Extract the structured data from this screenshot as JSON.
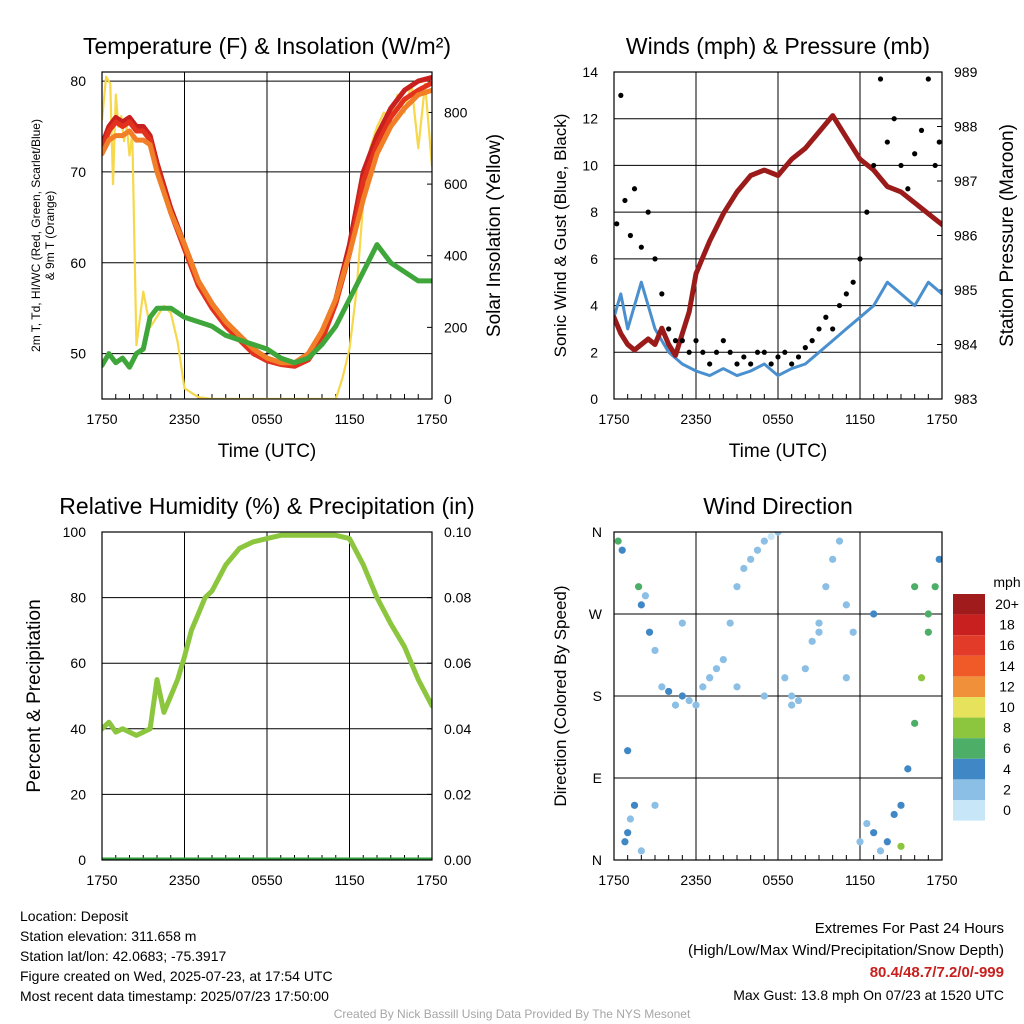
{
  "colors": {
    "temp_red": "#c8201e",
    "dewpoint_green": "#3ea63a",
    "heatindex_scarlet": "#e2321e",
    "nine_m_orange": "#f07f27",
    "insolation_yellow": "#f6d84a",
    "wind_blue": "#4a90cf",
    "gust_black": "#000000",
    "pressure_maroon": "#9b1b1b",
    "rh_green": "#8cc63f",
    "precip_green": "#2e9c3a",
    "extremes_red": "#c8201e"
  },
  "x_ticks": [
    "1750",
    "2350",
    "0550",
    "1150",
    "1750"
  ],
  "chart_data": [
    {
      "id": "temp",
      "type": "line",
      "title": "Temperature (F) & Insolation (W/m²)",
      "xlabel": "Time (UTC)",
      "ylabel": "2m T, Td, HI/WC (Red, Green, Scarlet/Blue) & 9m T (Orange)",
      "y2label": "Solar Insolation (Yellow)",
      "ylim": [
        45,
        81
      ],
      "y_ticks": [
        50,
        60,
        70,
        80
      ],
      "y2lim": [
        0,
        913
      ],
      "y2_ticks": [
        0,
        200,
        400,
        600,
        800
      ],
      "xlim": [
        0,
        24
      ],
      "series": [
        {
          "key": "insolation",
          "axis": "y2",
          "color": "#f6d84a",
          "x": [
            0,
            0.3,
            0.6,
            0.8,
            1.0,
            1.2,
            1.4,
            1.6,
            1.8,
            2.0,
            2.2,
            2.5,
            3.0,
            3.5,
            4.0,
            4.5,
            5.0,
            5.5,
            6.0,
            7.0,
            8.0,
            10.0,
            14.0,
            16.0,
            17.0,
            17.5,
            18.0,
            18.5,
            19.0,
            19.5,
            20.0,
            20.5,
            21.0,
            21.5,
            22.0,
            22.5,
            23.0,
            23.5,
            24.0
          ],
          "y": [
            780,
            900,
            880,
            600,
            850,
            760,
            790,
            720,
            760,
            680,
            740,
            150,
            300,
            200,
            230,
            260,
            240,
            160,
            30,
            5,
            0,
            0,
            0,
            0,
            0,
            60,
            140,
            300,
            550,
            700,
            760,
            800,
            780,
            850,
            800,
            880,
            700,
            880,
            650
          ]
        },
        {
          "key": "temp_2m",
          "axis": "y",
          "color": "#c8201e",
          "x": [
            0,
            0.5,
            1,
            1.5,
            2,
            2.5,
            3,
            3.5,
            4,
            5,
            6,
            7,
            8,
            9,
            10,
            11,
            12,
            13,
            14,
            15,
            16,
            17,
            18,
            19,
            20,
            21,
            22,
            23,
            24
          ],
          "y": [
            73,
            75,
            76,
            75.5,
            76,
            75,
            75,
            74,
            71,
            66,
            62,
            58,
            55.5,
            53.5,
            52,
            50.5,
            49.5,
            49,
            48.8,
            49.5,
            52,
            56,
            62,
            70,
            74,
            77,
            79,
            80,
            80.4
          ]
        },
        {
          "key": "heat_index",
          "axis": "y",
          "color": "#e2321e",
          "x": [
            0,
            0.5,
            1,
            1.5,
            2,
            2.5,
            3,
            3.5,
            4,
            5,
            6,
            7,
            8,
            9,
            10,
            11,
            12,
            13,
            14,
            15,
            16,
            17,
            18,
            19,
            20,
            21,
            22,
            23,
            24
          ],
          "y": [
            72.5,
            74.5,
            75.5,
            75,
            75.5,
            74.5,
            74.5,
            73.5,
            70.5,
            65.5,
            61.5,
            57.5,
            55,
            53,
            51.5,
            50,
            49.2,
            48.8,
            48.6,
            49.3,
            51.5,
            55.5,
            61,
            69,
            73,
            76,
            78,
            79,
            79.8
          ]
        },
        {
          "key": "temp_9m",
          "axis": "y",
          "color": "#f07f27",
          "x": [
            0,
            0.5,
            1,
            1.5,
            2,
            2.5,
            3,
            3.5,
            4,
            5,
            6,
            7,
            8,
            9,
            10,
            11,
            12,
            13,
            14,
            15,
            16,
            17,
            18,
            19,
            20,
            21,
            22,
            23,
            24
          ],
          "y": [
            72,
            73.5,
            74,
            74,
            74.5,
            73.5,
            73.5,
            73,
            70,
            65.5,
            62,
            58,
            55.5,
            53.5,
            52,
            50.5,
            49.5,
            49,
            49,
            50,
            52.5,
            56,
            61,
            67,
            72,
            75,
            77,
            78.5,
            79
          ]
        },
        {
          "key": "dewpoint",
          "axis": "y",
          "color": "#3ea63a",
          "x": [
            0,
            0.5,
            1,
            1.5,
            2,
            2.5,
            3,
            3.5,
            4,
            5,
            6,
            7,
            8,
            9,
            10,
            11,
            12,
            13,
            14,
            15,
            16,
            17,
            18,
            19,
            20,
            21,
            22,
            23,
            24
          ],
          "y": [
            48.7,
            50,
            49,
            49.5,
            48.5,
            50,
            50.5,
            54,
            55,
            55,
            54,
            53.5,
            53,
            52,
            51.5,
            51,
            50.5,
            49.5,
            49,
            49.5,
            51,
            53,
            56,
            59,
            62,
            60,
            59,
            58,
            58
          ]
        }
      ]
    },
    {
      "id": "winds",
      "type": "line",
      "title": "Winds (mph) & Pressure (mb)",
      "xlabel": "Time (UTC)",
      "ylabel": "Sonic Wind & Gust (Blue, Black)",
      "y2label": "Station Pressure (Maroon)",
      "ylim": [
        0,
        14
      ],
      "y_ticks": [
        0,
        2,
        4,
        6,
        8,
        10,
        12,
        14
      ],
      "y2lim": [
        983,
        989
      ],
      "y2_ticks": [
        983,
        984,
        985,
        986,
        987,
        988,
        989
      ],
      "xlim": [
        0,
        24
      ],
      "series": [
        {
          "key": "wind",
          "axis": "y",
          "color": "#4a90cf",
          "x": [
            0,
            0.5,
            1,
            1.5,
            2,
            2.5,
            3,
            3.5,
            4,
            5,
            6,
            7,
            8,
            9,
            10,
            11,
            12,
            13,
            14,
            15,
            16,
            17,
            18,
            19,
            20,
            21,
            22,
            23,
            24
          ],
          "y": [
            3.5,
            4.5,
            3,
            4,
            5,
            4,
            3,
            2.5,
            2,
            1.5,
            1.2,
            1,
            1.3,
            1,
            1.2,
            1.5,
            1,
            1.3,
            1.5,
            2,
            2.5,
            3,
            3.5,
            4,
            5,
            4.5,
            4,
            5,
            4.5
          ]
        },
        {
          "key": "pressure",
          "axis": "y2",
          "color": "#9b1b1b",
          "x": [
            0,
            0.5,
            1,
            1.5,
            2,
            2.5,
            3,
            3.5,
            4,
            4.5,
            5,
            5.5,
            6,
            6.5,
            7,
            8,
            9,
            10,
            11,
            12,
            13,
            14,
            15,
            16,
            17,
            18,
            19,
            20,
            21,
            22,
            23,
            23.5,
            24
          ],
          "y": [
            984.5,
            984.2,
            984.0,
            983.9,
            984.0,
            984.1,
            984.0,
            984.3,
            984.0,
            983.8,
            984.2,
            984.6,
            985.3,
            985.6,
            985.9,
            986.4,
            986.8,
            987.1,
            987.2,
            987.1,
            987.4,
            987.6,
            987.9,
            988.2,
            987.8,
            987.4,
            987.2,
            986.9,
            986.8,
            986.6,
            986.4,
            986.3,
            986.2
          ]
        },
        {
          "key": "gust",
          "axis": "y",
          "color": "#000000",
          "marker": "dot",
          "x": [
            0.2,
            0.5,
            0.8,
            1.2,
            1.5,
            2.0,
            2.5,
            3.0,
            3.5,
            4.0,
            4.5,
            5.0,
            5.5,
            6.0,
            6.5,
            7.0,
            7.5,
            8.0,
            8.5,
            9.0,
            9.5,
            10.0,
            10.5,
            11.0,
            11.5,
            12.0,
            12.5,
            13.0,
            13.5,
            14.0,
            14.5,
            15.0,
            15.5,
            16.0,
            16.5,
            17.0,
            17.5,
            18.0,
            18.5,
            19.0,
            19.5,
            20.0,
            20.5,
            21.0,
            21.5,
            22.0,
            22.5,
            23.0,
            23.5,
            23.8
          ],
          "y": [
            7.5,
            13,
            8.5,
            7,
            9,
            6.5,
            8,
            6,
            4.5,
            3,
            2.5,
            2.5,
            2,
            2.5,
            2,
            1.5,
            2,
            2.5,
            2,
            1.5,
            1.8,
            1.5,
            2,
            2,
            1.5,
            1.8,
            2,
            1.5,
            1.8,
            2.2,
            2.5,
            3,
            3.5,
            3,
            4,
            4.5,
            5,
            6,
            8,
            10,
            13.7,
            11,
            12,
            10,
            9,
            10.5,
            11.5,
            13.7,
            10,
            11
          ]
        }
      ]
    },
    {
      "id": "rh",
      "type": "line",
      "title": "Relative Humidity (%) & Precipitation (in)",
      "xlabel": "",
      "ylabel": "Percent & Precipitation",
      "ylim": [
        0,
        100
      ],
      "y_ticks": [
        0,
        20,
        40,
        60,
        80,
        100
      ],
      "y2lim": [
        0,
        0.1
      ],
      "y2_ticks": [
        "0.00",
        "0.02",
        "0.04",
        "0.06",
        "0.08",
        "0.10"
      ],
      "xlim": [
        0,
        24
      ],
      "series": [
        {
          "key": "rh",
          "axis": "y",
          "color": "#8cc63f",
          "x": [
            0,
            0.5,
            1,
            1.5,
            2,
            2.5,
            3,
            3.5,
            4,
            4.5,
            5,
            5.5,
            6,
            6.5,
            7,
            7.5,
            8,
            9,
            10,
            11,
            12,
            13,
            14,
            15,
            16,
            17,
            18,
            19,
            20,
            21,
            22,
            23,
            24
          ],
          "y": [
            40,
            42,
            39,
            40,
            39,
            38,
            39,
            40,
            55,
            45,
            50,
            55,
            62,
            70,
            75,
            80,
            82,
            90,
            95,
            97,
            98,
            99,
            99,
            99,
            99,
            99,
            98,
            90,
            80,
            72,
            65,
            55,
            47
          ]
        },
        {
          "key": "precip",
          "axis": "y2",
          "color": "#2e9c3a",
          "x": [
            0,
            24
          ],
          "y": [
            0,
            0
          ]
        }
      ]
    },
    {
      "id": "wdir",
      "type": "scatter",
      "title": "Wind Direction",
      "ylabel": "Direction (Colored By Speed)",
      "y_ticks": [
        "N",
        "E",
        "S",
        "W",
        "N"
      ],
      "ylim": [
        0,
        360
      ],
      "xlim": [
        0,
        24
      ],
      "legend_title": "mph",
      "legend_labels": [
        "20+",
        "18",
        "16",
        "14",
        "12",
        "10",
        "8",
        "6",
        "4",
        "2",
        "0"
      ],
      "legend_colors": [
        "#a01b1b",
        "#c8201e",
        "#e23b2a",
        "#f05a28",
        "#f0903b",
        "#e7e25b",
        "#8cc63f",
        "#4cae67",
        "#3f87c5",
        "#8bbfe5",
        "#c7e6f7"
      ],
      "points": {
        "x": [
          0.3,
          0.6,
          0.8,
          1.0,
          1.2,
          1.5,
          1.8,
          2.0,
          2.3,
          2.6,
          3.0,
          3.5,
          4.0,
          4.5,
          5.0,
          5.5,
          6.0,
          6.5,
          7.0,
          7.5,
          8.0,
          8.5,
          9.0,
          9.5,
          10.0,
          10.5,
          11.0,
          11.5,
          12.0,
          12.5,
          13.0,
          13.5,
          14.0,
          14.5,
          15.0,
          15.5,
          16.0,
          16.5,
          17.0,
          17.5,
          18.0,
          18.5,
          19.0,
          19.5,
          20.0,
          20.5,
          21.0,
          21.5,
          22.0,
          22.5,
          23.0,
          23.5,
          23.8,
          1.0,
          2.0,
          3.0,
          5.0,
          7.0,
          9.0,
          11.0,
          13.0,
          15.0,
          17.0,
          19.0,
          21.0,
          22.0,
          23.0
        ],
        "y": [
          350,
          340,
          20,
          30,
          45,
          60,
          300,
          280,
          290,
          250,
          230,
          190,
          185,
          170,
          180,
          175,
          170,
          190,
          200,
          210,
          220,
          260,
          300,
          320,
          330,
          340,
          350,
          355,
          360,
          200,
          180,
          175,
          210,
          240,
          260,
          300,
          330,
          350,
          280,
          250,
          20,
          40,
          30,
          10,
          20,
          50,
          60,
          100,
          150,
          200,
          270,
          300,
          330,
          120,
          10,
          60,
          260,
          200,
          190,
          180,
          170,
          250,
          200,
          270,
          15,
          300,
          250
        ],
        "speed": [
          6,
          4,
          3,
          4,
          2,
          3,
          5,
          4,
          2,
          3,
          2,
          2,
          3,
          2,
          3,
          2,
          1,
          2,
          1,
          2,
          2,
          1,
          1,
          1,
          1,
          1,
          1,
          0,
          1,
          2,
          1,
          1,
          1,
          2,
          1,
          1,
          1,
          2,
          1,
          1,
          2,
          2,
          3,
          2,
          3,
          3,
          4,
          4,
          5,
          7,
          6,
          5,
          4,
          3,
          2,
          2,
          1,
          1,
          1,
          1,
          1,
          1,
          2,
          4,
          7,
          6,
          5
        ]
      }
    }
  ],
  "info": {
    "location": "Location: Deposit",
    "elevation": "Station elevation: 311.658 m",
    "latlon": "Station lat/lon: 42.0683; -75.3917",
    "created": "Figure created on Wed, 2025-07-23, at 17:54 UTC",
    "recent": "Most recent data timestamp: 2025/07/23 17:50:00"
  },
  "extremes": {
    "title": "Extremes For Past 24 Hours",
    "subtitle": "(High/Low/Max Wind/Precipitation/Snow Depth)",
    "values": "80.4/48.7/7.2/0/-999",
    "max_gust": "Max Gust: 13.8 mph On 07/23 at 1520 UTC"
  },
  "credit": "Created By Nick Bassill Using Data Provided By The NYS Mesonet"
}
